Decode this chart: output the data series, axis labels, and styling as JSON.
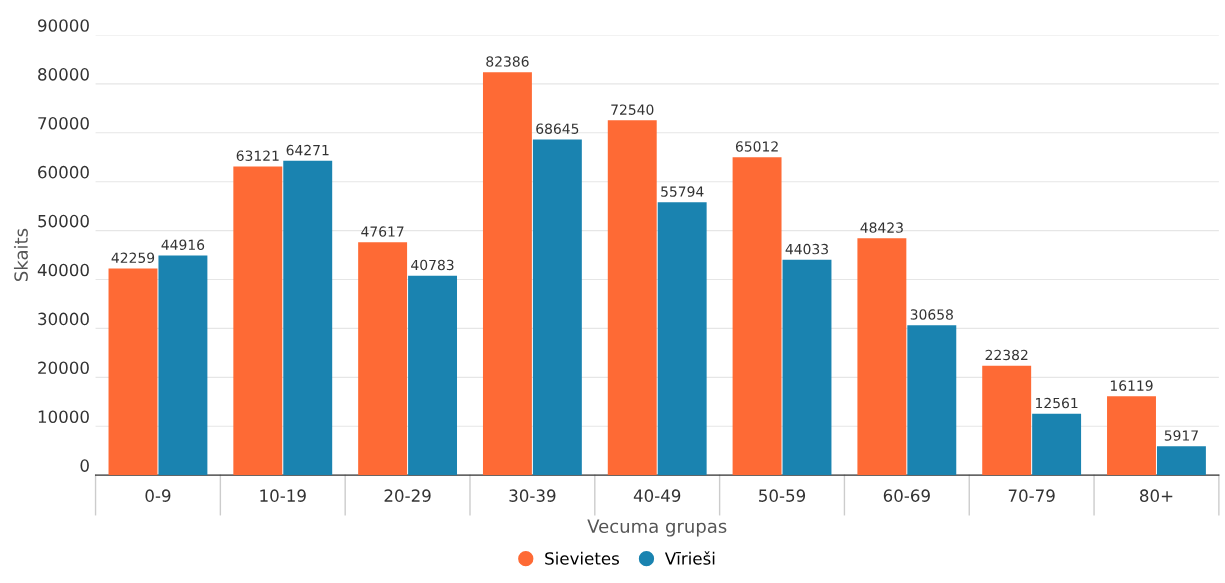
{
  "chart_data": {
    "type": "bar",
    "xlabel": "Vecuma grupas",
    "ylabel": "Skaits",
    "categories": [
      "0-9",
      "10-19",
      "20-29",
      "30-39",
      "40-49",
      "50-59",
      "60-69",
      "70-79",
      "80+"
    ],
    "series": [
      {
        "name": "Sievietes",
        "color": "#fe6a35",
        "values": [
          42259,
          63121,
          47617,
          82386,
          72540,
          65012,
          48423,
          22382,
          16119
        ]
      },
      {
        "name": "Vīrieši",
        "color": "#1a83b0",
        "values": [
          44916,
          64271,
          40783,
          68645,
          55794,
          44033,
          30658,
          12561,
          5917
        ]
      }
    ],
    "ylim": [
      0,
      90000
    ],
    "yticks": [
      0,
      10000,
      20000,
      30000,
      40000,
      50000,
      60000,
      70000,
      80000,
      90000
    ],
    "grid": "y",
    "legend": "bottom",
    "data_labels": true
  }
}
